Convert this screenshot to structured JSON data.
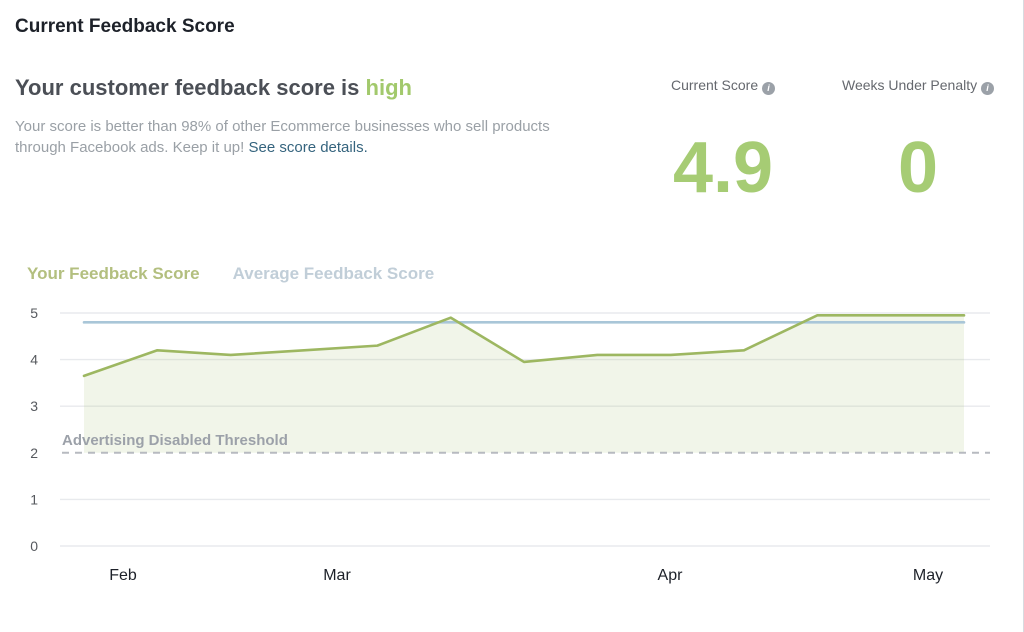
{
  "page": {
    "title": "Current Feedback Score"
  },
  "summary": {
    "heading_prefix": "Your customer feedback score is ",
    "heading_highlight": "high",
    "body_text": "Your score is better than 98% of other Ecommerce businesses who sell products through Facebook ads. Keep it up! ",
    "link_text": "See score details."
  },
  "stats": [
    {
      "label": "Current Score",
      "value": "4.9"
    },
    {
      "label": "Weeks Under Penalty",
      "value": "0"
    }
  ],
  "info_icon_glyph": "i",
  "colors": {
    "accent_green": "#a2c96c",
    "legend_green": "#b3bf7f",
    "legend_blue": "#c1ced8",
    "link_teal": "#35647e"
  },
  "chart_data": {
    "type": "line",
    "title": "",
    "xlabel": "",
    "ylabel": "",
    "x_labels": [
      "Feb",
      "Mar",
      "Apr",
      "May"
    ],
    "ylim": [
      0,
      5
    ],
    "yticks": [
      0,
      1,
      2,
      3,
      4,
      5
    ],
    "grid": true,
    "legend_position": "top-left",
    "series": [
      {
        "name": "Your Feedback Score",
        "type": "area-line",
        "color": "#9db761",
        "fill": "rgba(157,183,97,0.14)",
        "values": [
          3.65,
          4.2,
          4.1,
          4.2,
          4.3,
          4.9,
          3.95,
          4.1,
          4.1,
          4.2,
          4.95,
          4.95,
          4.95
        ]
      },
      {
        "name": "Average Feedback Score",
        "type": "line",
        "color": "#a9c6d8",
        "values": [
          4.8,
          4.8,
          4.8,
          4.8,
          4.8,
          4.8,
          4.8,
          4.8,
          4.8,
          4.8,
          4.8,
          4.8,
          4.8
        ]
      }
    ],
    "threshold": {
      "label": "Advertising Disabled Threshold",
      "value": 2,
      "color": "#b7bac0"
    }
  }
}
